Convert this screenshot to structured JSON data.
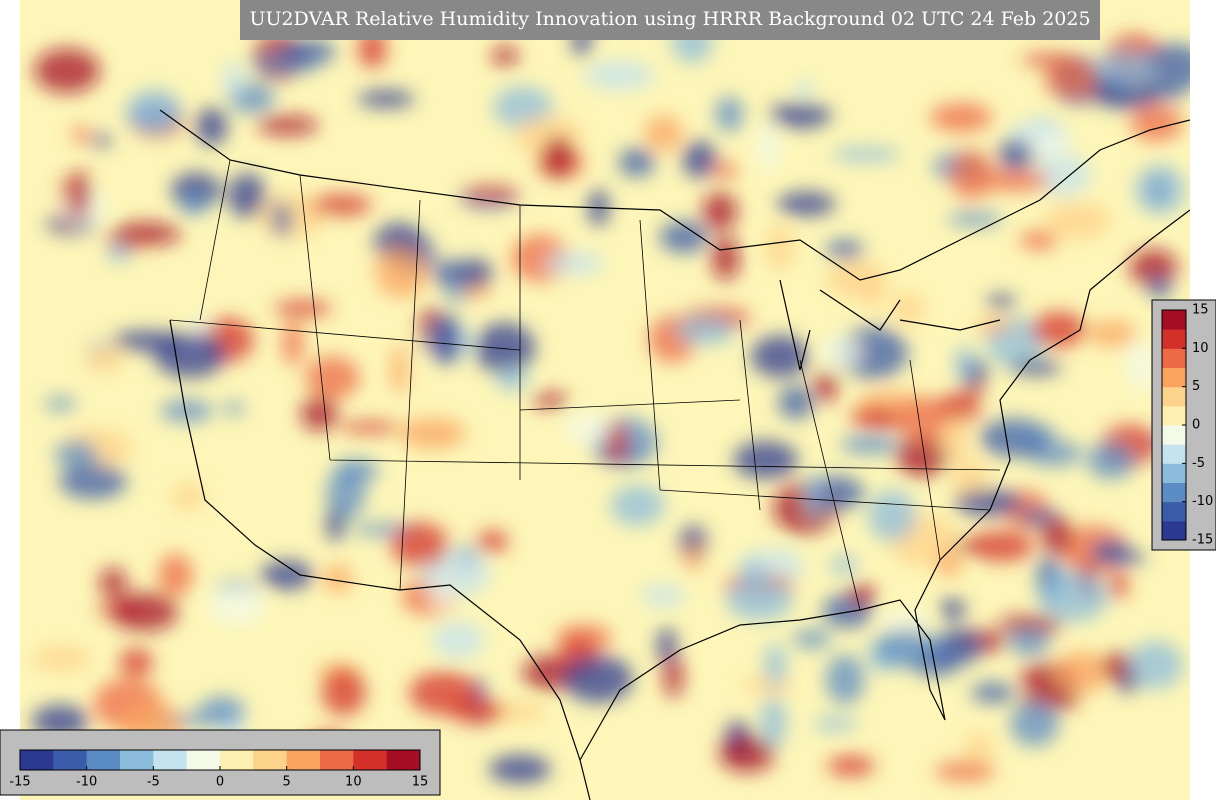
{
  "title": "UU2DVAR Relative Humidity Innovation using HRRR Background 02 UTC 24 Feb 2025",
  "colorbars": [
    {
      "orientation": "vertical",
      "range": [
        -15,
        15
      ],
      "ticks": [
        15,
        10,
        5,
        0,
        -5,
        -10,
        -15
      ]
    },
    {
      "orientation": "horizontal",
      "range": [
        -15,
        15
      ],
      "ticks": [
        -15,
        -10,
        -5,
        0,
        5,
        10,
        15
      ]
    }
  ],
  "colors": [
    "#2b3990",
    "#3b5ca8",
    "#5b8cc4",
    "#8cbcdc",
    "#c4e3ef",
    "#f3fbe8",
    "#fdf0b0",
    "#fdd28a",
    "#f9a35f",
    "#ec6a45",
    "#d3302a",
    "#a50f26"
  ]
}
